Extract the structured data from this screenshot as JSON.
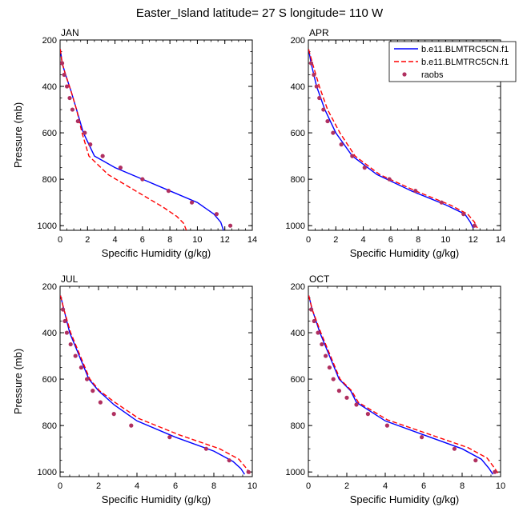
{
  "title": "Easter_Island  latitude= 27 S longitude= 110 W",
  "legend": {
    "items": [
      {
        "label": "b.e11.BLMTRC5CN.f1",
        "color": "#0000ff",
        "dash": "solid",
        "marker": "line"
      },
      {
        "label": "b.e11.BLMTRC5CN.f1",
        "color": "#ff0000",
        "dash": "dashed",
        "marker": "line"
      },
      {
        "label": "raobs",
        "color": "#b03060",
        "dash": "none",
        "marker": "dot"
      }
    ]
  },
  "colors": {
    "model1": "#0000ff",
    "model2": "#ff0000",
    "obs": "#b03060",
    "axis": "#000000"
  },
  "chart_data": [
    {
      "type": "line",
      "panel_label": "JAN",
      "xlabel": "Specific Humidity (g/kg)",
      "ylabel": "Pressure (mb)",
      "xlim": [
        0,
        14
      ],
      "ylim": [
        200,
        1020
      ],
      "y_inverted": true,
      "xticks": [
        "0",
        "2",
        "4",
        "6",
        "8",
        "10",
        "12",
        "14"
      ],
      "yticks": [
        "200",
        "400",
        "600",
        "800",
        "1000"
      ],
      "series": [
        {
          "name": "b.e11.BLMTRC5CN.f1",
          "style": "solid",
          "x": [
            0.02,
            0.15,
            0.4,
            0.8,
            1.2,
            1.7,
            2.5,
            4.0,
            6.0,
            8.0,
            10.0,
            11.2,
            11.7,
            11.9
          ],
          "y": [
            240,
            300,
            350,
            420,
            500,
            600,
            700,
            750,
            800,
            850,
            900,
            950,
            985,
            1020
          ]
        },
        {
          "name": "b.e11.BLMTRC5CN.f1",
          "style": "dashed",
          "x": [
            0.02,
            0.15,
            0.4,
            0.8,
            1.2,
            1.6,
            2.1,
            3.5,
            5.5,
            7.5,
            8.5,
            9.0,
            9.2
          ],
          "y": [
            240,
            300,
            350,
            420,
            500,
            600,
            700,
            780,
            850,
            920,
            960,
            990,
            1020
          ]
        },
        {
          "name": "raobs",
          "style": "markers",
          "x": [
            0.15,
            0.3,
            0.5,
            0.7,
            0.9,
            1.3,
            1.8,
            2.2,
            3.1,
            4.4,
            6.0,
            7.9,
            9.6,
            11.4,
            12.4
          ],
          "y": [
            300,
            350,
            400,
            450,
            500,
            550,
            600,
            650,
            700,
            750,
            800,
            850,
            900,
            950,
            1000
          ]
        }
      ]
    },
    {
      "type": "line",
      "panel_label": "APR",
      "xlabel": "Specific Humidity (g/kg)",
      "ylabel": "",
      "xlim": [
        0,
        14
      ],
      "ylim": [
        200,
        1020
      ],
      "y_inverted": true,
      "xticks": [
        "0",
        "2",
        "4",
        "6",
        "8",
        "10",
        "12",
        "14"
      ],
      "yticks": [
        "200",
        "400",
        "600",
        "800",
        "1000"
      ],
      "series": [
        {
          "name": "b.e11.BLMTRC5CN.f1",
          "style": "solid",
          "x": [
            0.02,
            0.2,
            0.6,
            1.2,
            2.0,
            3.2,
            5.0,
            7.5,
            10.0,
            11.4,
            11.8,
            12.0
          ],
          "y": [
            240,
            300,
            400,
            500,
            600,
            700,
            780,
            850,
            910,
            950,
            985,
            1010
          ]
        },
        {
          "name": "b.e11.BLMTRC5CN.f1",
          "style": "dashed",
          "x": [
            0.02,
            0.3,
            0.8,
            1.4,
            2.3,
            3.4,
            5.2,
            7.8,
            10.3,
            11.6,
            12.1,
            12.3
          ],
          "y": [
            240,
            300,
            400,
            500,
            600,
            700,
            780,
            850,
            910,
            950,
            985,
            1010
          ]
        },
        {
          "name": "raobs",
          "style": "markers",
          "x": [
            0.2,
            0.4,
            0.6,
            0.8,
            1.1,
            1.4,
            1.8,
            2.4,
            3.2,
            4.1,
            5.9,
            7.8,
            9.7,
            11.3,
            12.1
          ],
          "y": [
            300,
            350,
            400,
            450,
            500,
            550,
            600,
            650,
            700,
            750,
            800,
            850,
            900,
            950,
            1000
          ]
        }
      ]
    },
    {
      "type": "line",
      "panel_label": "JUL",
      "xlabel": "Specific Humidity (g/kg)",
      "ylabel": "Pressure (mb)",
      "xlim": [
        0,
        10
      ],
      "ylim": [
        200,
        1020
      ],
      "y_inverted": true,
      "xticks": [
        "0",
        "2",
        "4",
        "6",
        "8",
        "10"
      ],
      "yticks": [
        "200",
        "400",
        "600",
        "800",
        "1000"
      ],
      "series": [
        {
          "name": "b.e11.BLMTRC5CN.f1",
          "style": "solid",
          "x": [
            0.02,
            0.2,
            0.5,
            1.0,
            1.5,
            2.0,
            2.8,
            4.0,
            6.0,
            8.0,
            9.0,
            9.4,
            9.6
          ],
          "y": [
            240,
            300,
            400,
            500,
            600,
            650,
            710,
            780,
            850,
            910,
            955,
            985,
            1010
          ]
        },
        {
          "name": "b.e11.BLMTRC5CN.f1",
          "style": "dashed",
          "x": [
            0.02,
            0.2,
            0.55,
            1.05,
            1.55,
            2.05,
            2.85,
            4.1,
            6.2,
            8.3,
            9.3,
            9.7,
            9.9
          ],
          "y": [
            240,
            300,
            400,
            500,
            600,
            650,
            700,
            770,
            840,
            900,
            945,
            985,
            1010
          ]
        },
        {
          "name": "raobs",
          "style": "markers",
          "x": [
            0.15,
            0.25,
            0.35,
            0.55,
            0.8,
            1.1,
            1.4,
            1.7,
            2.1,
            2.8,
            3.7,
            5.7,
            7.6,
            8.8,
            9.8
          ],
          "y": [
            300,
            350,
            400,
            450,
            500,
            550,
            600,
            650,
            700,
            750,
            800,
            850,
            900,
            950,
            1000
          ]
        }
      ]
    },
    {
      "type": "line",
      "panel_label": "OCT",
      "xlabel": "Specific Humidity (g/kg)",
      "ylabel": "",
      "xlim": [
        0,
        10
      ],
      "ylim": [
        200,
        1020
      ],
      "y_inverted": true,
      "xticks": [
        "0",
        "2",
        "4",
        "6",
        "8",
        "10"
      ],
      "yticks": [
        "200",
        "400",
        "600",
        "800",
        "1000"
      ],
      "series": [
        {
          "name": "b.e11.BLMTRC5CN.f1",
          "style": "solid",
          "x": [
            0.02,
            0.2,
            0.6,
            1.1,
            1.6,
            2.2,
            2.5,
            4.0,
            6.0,
            8.0,
            9.0,
            9.4,
            9.6
          ],
          "y": [
            240,
            300,
            400,
            500,
            600,
            650,
            700,
            780,
            840,
            900,
            945,
            985,
            1010
          ]
        },
        {
          "name": "b.e11.BLMTRC5CN.f1",
          "style": "dashed",
          "x": [
            0.02,
            0.2,
            0.65,
            1.15,
            1.65,
            2.25,
            2.6,
            4.1,
            6.2,
            8.3,
            9.3,
            9.7,
            9.9
          ],
          "y": [
            240,
            300,
            400,
            500,
            600,
            650,
            700,
            775,
            835,
            895,
            940,
            985,
            1010
          ]
        },
        {
          "name": "raobs",
          "style": "markers",
          "x": [
            0.15,
            0.3,
            0.5,
            0.7,
            0.9,
            1.1,
            1.3,
            1.6,
            2.0,
            2.5,
            3.1,
            4.1,
            5.9,
            7.6,
            8.7,
            9.7
          ],
          "y": [
            300,
            350,
            400,
            450,
            500,
            550,
            600,
            650,
            680,
            710,
            750,
            800,
            850,
            900,
            950,
            1000
          ]
        }
      ]
    }
  ]
}
